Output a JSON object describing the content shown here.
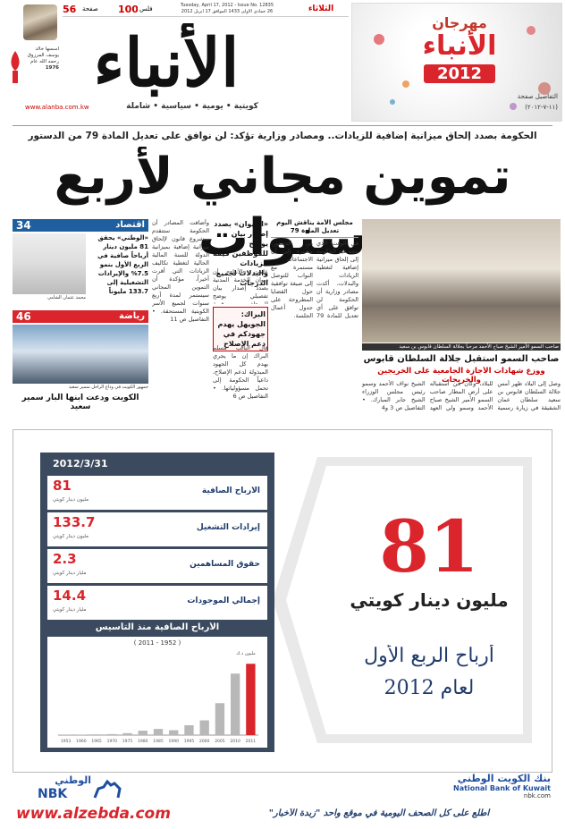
{
  "header": {
    "day": "الثلاثاء",
    "date_en": "Tuesday, April 17, 2012 - Issue No. 12835",
    "date_ar": "26 جمادى الأولى 1433 الموافق 17 أبريل 2012",
    "price": "100",
    "price_unit": "فلس",
    "pages": "56",
    "pages_unit": "صفحة",
    "logo": "الأنباء",
    "founder": "أسسها خالد يوسف المرزوق رحمه الله عام",
    "founded": "1976",
    "website": "www.alanba.com.kw",
    "tagline": "كويتية • يومية • سياسية • شاملة"
  },
  "festival": {
    "title": "مهرجان",
    "brand": "الأنباء",
    "year": "2012",
    "details": "التفاصيل صفحة",
    "dates": "(١١-٧-٢٠١٢)"
  },
  "lead": {
    "kicker": "الحكومة بصدد إلحاق ميزانية إضافية للزيادات.. ومصادر وزارية تؤكد: لن نوافق على تعديل المادة 79 من الدستور",
    "headline": "تموين مجاني لأربع سنوات"
  },
  "stories": {
    "amir": {
      "caption": "صاحب السمو الأمير الشيخ صباح الأحمد مرحباً بجلالة السلطان قابوس بن سعيد",
      "headline_1": "صاحب السمو استقبل جلالة السلطان قابوس",
      "headline_2": "ووزع شهادات الأجازة الجامعية على الخريجين والخريجات",
      "body": "وصل إلى البلاد ظهر أمس جلالة السلطان قابوس بن سعيد سلطان عمان الشقيقة في زيارة رسمية للبلاد، وكان في استقباله على أرض المطار صاحب السمو الأمير الشيخ صباح الأحمد وسمو ولي العهد الشيخ نواف الأحمد وسمو رئيس مجلس الوزراء الشيخ جابر المبارك. • التفاصيل ص 3 و4"
    },
    "council": {
      "headline": "مجلس الأمة يناقش اليوم تعديل المادة 79",
      "body": "في الوقت الذي تتجه فيه الحكومة إلى إلحاق ميزانية إضافية لتغطية الزيادات والبدلات، أكدت مصادر وزارية أن الحكومة لن توافق على أي تعديل للمادة 79 من الدستور، مشيرة إلى أن الاجتماعات مستمرة مع النواب للتوصل إلى صيغة توافقية حول القضايا المطروحة على جدول أعمال الجلسة."
    },
    "diwan": {
      "headline": "«الديوان» بصدد إصدار بيان يوضح للموظفين قيمة الزيادات والبدلات لجميع الدرجات",
      "body": "علمت «الأنباء» أن ديوان الخدمة المدنية بصدد إصدار بيان تفصيلي يوضح للموظفين قيمة الزيادات والبدلات المقررة لجميع الدرجات الوظيفية. • التفاصيل ص 5"
    },
    "barrak": {
      "headline": "البراك: الجويهل يهدم جهودكم في دعم الإصلاح",
      "body": "قال النائب مسلم البراك إن ما يجري يهدم كل الجهود المبذولة لدعم الإصلاح، داعياً الحكومة إلى تحمل مسؤولياتها. • التفاصيل ص 6"
    },
    "column": {
      "body": "وأضافت المصادر أن الحكومة ستتقدم بمشروع قانون لإلحاق ميزانية إضافية بميزانية الدولة للسنة المالية الحالية لتغطية تكاليف الزيادات التي أقرت أخيراً، مؤكدة أن التموين المجاني سيستمر لمدة أربع سنوات لجميع الأسر الكويتية المستحقة. • التفاصيل ص 11"
    }
  },
  "sidebar": {
    "economy": {
      "section": "اقتصاد",
      "page": "34",
      "headline": "«الوطني» يحقق 81 مليون دينار أرباحاً صافية في الربع الأول بنمو 7.5% والإيرادات التشغيلية إلى 133.7 مليوناً",
      "caption": "محمد عثمان الشامي"
    },
    "sports": {
      "section": "رياضة",
      "page": "46",
      "caption": "جمهور الكويت في وداع الراحل سمير سعيد",
      "headline": "الكويت ودعت ابنها البار سمير سعيد"
    }
  },
  "ad": {
    "date": "2012/3/31",
    "items": [
      {
        "value": 81,
        "unit": "مليون دينار كويتي",
        "label": "الأرباح الصافية"
      },
      {
        "value": 133.7,
        "unit": "مليون دينار كويتي",
        "label": "إيرادات التشغيل"
      },
      {
        "value": 2.3,
        "unit": "مليار دينار كويتي",
        "label": "حقوق المساهمين"
      },
      {
        "value": 14.4,
        "unit": "مليار دينار كويتي",
        "label": "إجمالي الموجودات"
      }
    ],
    "chart": {
      "type": "bar",
      "title": "الأرباح الصافية منذ التأسيس",
      "subtitle": "( 2011 - 1952 )",
      "y_label": "مليون د.ك",
      "categories": [
        "1953",
        "1960",
        "1965",
        "1970",
        "1975",
        "1980",
        "1985",
        "1990",
        "1995",
        "2000",
        "2005",
        "2010",
        "2011"
      ],
      "values": [
        1,
        2,
        3,
        4,
        8,
        18,
        25,
        20,
        40,
        60,
        130,
        250,
        290
      ],
      "colors": [
        "#b8b8b8",
        "#b8b8b8",
        "#b8b8b8",
        "#b8b8b8",
        "#b8b8b8",
        "#b8b8b8",
        "#b8b8b8",
        "#b8b8b8",
        "#b8b8b8",
        "#b8b8b8",
        "#b8b8b8",
        "#b8b8b8",
        "#d9252b"
      ],
      "ylim": [
        0,
        320
      ]
    },
    "big_value": 81,
    "big_unit": "مليون دينار كويتي",
    "tagline_1": "أرباح الربع الأول",
    "tagline_2": "لعام 2012",
    "logo_ar": "الوطني",
    "logo_en": "NBK",
    "bank_ar": "بنك الكويت الوطني",
    "bank_en": "National Bank of Kuwait",
    "bank_web": "nbk.com"
  },
  "footer": {
    "site": "www.alzebda.com",
    "text": "اطلع على كل الصحف اليومية في موقع واحد \"زبدة الأخبار\""
  }
}
